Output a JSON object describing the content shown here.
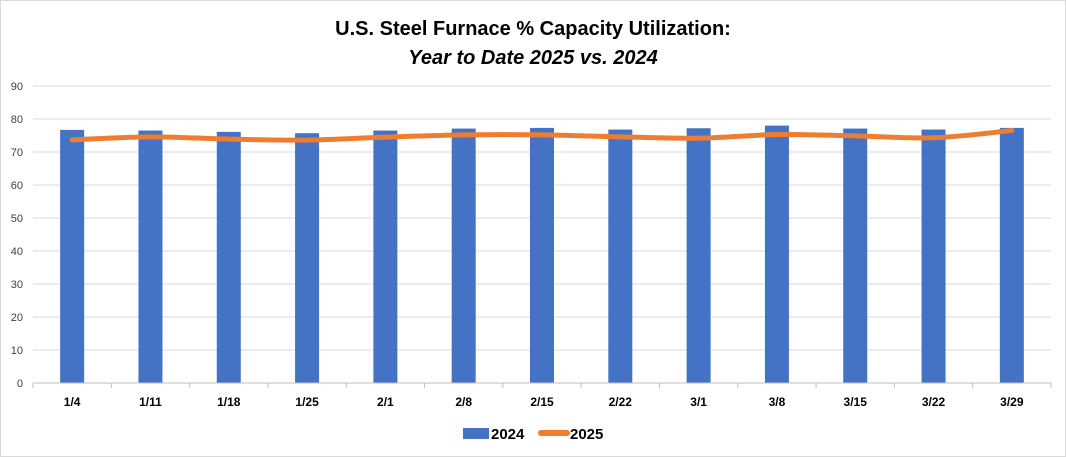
{
  "chart_data": {
    "type": "bar",
    "title": "U.S. Steel Furnace % Capacity Utilization:",
    "subtitle": "Year to Date 2025 vs. 2024",
    "categories": [
      "1/4",
      "1/11",
      "1/18",
      "1/25",
      "2/1",
      "2/8",
      "2/15",
      "2/22",
      "3/1",
      "3/8",
      "3/15",
      "3/22",
      "3/29"
    ],
    "series": [
      {
        "name": "2024",
        "type": "bar",
        "color": "#4472c4",
        "values": [
          76.7,
          76.5,
          76.1,
          75.7,
          76.5,
          77.1,
          77.3,
          76.8,
          77.2,
          78.0,
          77.1,
          76.8,
          77.3
        ]
      },
      {
        "name": "2025",
        "type": "line",
        "color": "#ed7d31",
        "values": [
          73.7,
          74.6,
          73.9,
          73.6,
          74.5,
          75.2,
          75.2,
          74.6,
          74.2,
          75.3,
          74.9,
          74.3,
          76.5
        ]
      }
    ],
    "ylim": [
      0,
      90
    ],
    "yticks": [
      "0",
      "10",
      "20",
      "30",
      "40",
      "50",
      "60",
      "70",
      "80",
      "90"
    ],
    "xlabel": "",
    "ylabel": "",
    "grid": true,
    "legend": "bottom-center"
  }
}
